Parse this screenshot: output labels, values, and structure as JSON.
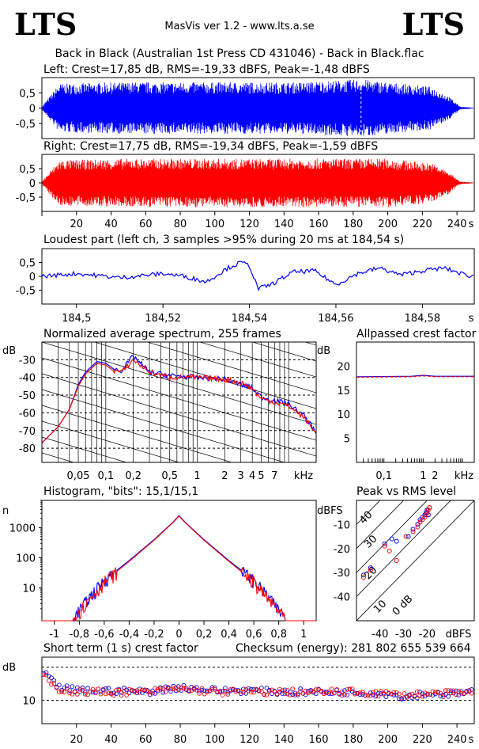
{
  "header": {
    "logo_left": "LTS",
    "logo_right": "LTS",
    "app": "MasVis ver 1.2 - www.lts.a.se",
    "track": "Back in Black (Australian 1st Press CD 431046) - Back in Black.flac"
  },
  "colors": {
    "left": "#0000ff",
    "right": "#ff0000",
    "frame": "#000000"
  },
  "chart_data": [
    {
      "id": "left",
      "type": "line",
      "title": "Left: Crest=17,85 dB, RMS=-19,33 dBFS, Peak=-1,48 dBFS",
      "ylim": [
        -1,
        1
      ],
      "xlim": [
        0,
        250
      ],
      "y_ticks": [
        0.5,
        0,
        -0.5
      ],
      "y_tick_labels": [
        "0,5",
        "0",
        "-0,5"
      ],
      "marker_x": 184.54,
      "envelope": {
        "x": [
          0,
          10,
          50,
          100,
          150,
          184.54,
          200,
          225,
          235,
          242,
          250
        ],
        "amp": [
          0.05,
          0.8,
          0.85,
          0.85,
          0.85,
          0.95,
          0.85,
          0.7,
          0.4,
          0.05,
          0.01
        ]
      }
    },
    {
      "id": "right",
      "type": "line",
      "title": "Right: Crest=17,75 dB, RMS=-19,34 dBFS, Peak=-1,59 dBFS",
      "ylim": [
        -1,
        1
      ],
      "xlim": [
        0,
        250
      ],
      "y_ticks": [
        0.5,
        0,
        -0.5
      ],
      "y_tick_labels": [
        "0,5",
        "0",
        "-0,5"
      ],
      "x_ticks": [
        20,
        40,
        60,
        80,
        100,
        120,
        140,
        160,
        180,
        200,
        220,
        240
      ],
      "x_tick_labels": [
        "20",
        "40",
        "60",
        "80",
        "100",
        "120",
        "140",
        "160",
        "180",
        "200",
        "220",
        "240"
      ],
      "x_unit": "s",
      "envelope": {
        "x": [
          0,
          10,
          50,
          100,
          150,
          200,
          225,
          235,
          242,
          250
        ],
        "amp": [
          0.05,
          0.8,
          0.85,
          0.85,
          0.85,
          0.85,
          0.7,
          0.4,
          0.05,
          0.01
        ]
      }
    },
    {
      "id": "loudest",
      "type": "line",
      "title": "Loudest part (left  ch, 3 samples >95% during 20 ms at 184,54 s)",
      "xlim": [
        184.492,
        184.592
      ],
      "ylim": [
        -1,
        1
      ],
      "y_ticks": [
        0.5,
        0,
        -0.5
      ],
      "y_tick_labels": [
        "0,5",
        "0",
        "-0,5"
      ],
      "x_ticks": [
        184.5,
        184.52,
        184.54,
        184.56,
        184.58
      ],
      "x_tick_labels": [
        "184,5",
        "184,52",
        "184,54",
        "184,56",
        "184,58"
      ],
      "x_unit": "s",
      "series": [
        {
          "x": [
            184.492,
            184.5,
            184.51,
            184.52,
            184.525,
            184.53,
            184.535,
            184.538,
            184.54,
            184.542,
            184.545,
            184.55,
            184.555,
            184.56,
            184.565,
            184.57,
            184.575,
            184.58,
            184.585,
            184.59,
            184.592
          ],
          "values": [
            0.0,
            0.1,
            -0.05,
            0.1,
            0.0,
            -0.2,
            0.3,
            0.5,
            0.4,
            -0.45,
            -0.3,
            0.15,
            0.2,
            -0.3,
            0.1,
            0.3,
            0.05,
            0.2,
            0.3,
            0.05,
            0.0
          ]
        }
      ]
    },
    {
      "id": "spectrum",
      "type": "line",
      "title": "Normalized average spectrum, 255 frames",
      "ylabel": "dB",
      "y_ticks": [
        -30,
        -40,
        -50,
        -60,
        -70,
        -80
      ],
      "y_tick_labels": [
        "-30",
        "-40",
        "-50",
        "-60",
        "-70",
        "-80"
      ],
      "x_scale": "log",
      "x_ticks": [
        0.05,
        0.1,
        0.2,
        0.5,
        1,
        2,
        3,
        4,
        5,
        7
      ],
      "x_tick_labels": [
        "0,05",
        "0,1",
        "0,2",
        "0,5",
        "1",
        "2",
        "3",
        "4",
        "5",
        "7"
      ],
      "x_unit": "kHz",
      "series": [
        {
          "name": "Left",
          "x": [
            0.02,
            0.03,
            0.04,
            0.05,
            0.06,
            0.08,
            0.1,
            0.12,
            0.15,
            0.2,
            0.3,
            0.5,
            1,
            2,
            3,
            4,
            5,
            7,
            10,
            15,
            20
          ],
          "values": [
            -77,
            -68,
            -58,
            -44,
            -37,
            -31,
            -32,
            -35,
            -36,
            -28,
            -37,
            -39,
            -40,
            -41,
            -44,
            -46,
            -51,
            -53,
            -55,
            -62,
            -71
          ]
        },
        {
          "name": "Right",
          "x": [
            0.02,
            0.03,
            0.04,
            0.05,
            0.06,
            0.08,
            0.1,
            0.12,
            0.15,
            0.2,
            0.3,
            0.5,
            1,
            2,
            3,
            4,
            5,
            7,
            10,
            15,
            20
          ],
          "values": [
            -77,
            -68,
            -58,
            -45,
            -38,
            -32,
            -33,
            -36,
            -37,
            -30,
            -37,
            -40,
            -40,
            -41,
            -43,
            -46,
            -52,
            -54,
            -56,
            -63,
            -72
          ]
        }
      ]
    },
    {
      "id": "allpass",
      "type": "line",
      "title": "Allpassed crest factor",
      "ylabel": "dB",
      "ylim": [
        0,
        25
      ],
      "y_ticks": [
        20,
        15,
        10,
        5
      ],
      "y_tick_labels": [
        "20",
        "15",
        "10",
        "5"
      ],
      "x_scale": "log",
      "x_ticks": [
        0.1,
        1,
        2
      ],
      "x_tick_labels": [
        "0,1",
        "1",
        "2"
      ],
      "x_unit": "kHz",
      "series": [
        {
          "name": "Left",
          "x": [
            0.02,
            0.5,
            1,
            2,
            5,
            20
          ],
          "values": [
            17.8,
            17.9,
            18.1,
            17.9,
            17.9,
            17.9
          ]
        },
        {
          "name": "Right",
          "x": [
            0.02,
            0.5,
            1,
            2,
            5,
            20
          ],
          "values": [
            17.7,
            17.8,
            18.0,
            17.8,
            17.8,
            17.8
          ]
        }
      ]
    },
    {
      "id": "histogram",
      "type": "line",
      "title": "Histogram, \"bits\": 15,1/15,1",
      "ylabel": "n",
      "y_scale": "log",
      "y_ticks": [
        1000,
        100,
        10
      ],
      "y_tick_labels": [
        "1000",
        "100",
        "10"
      ],
      "xlim": [
        -1.1,
        1.1
      ],
      "x_ticks": [
        -1,
        -0.8,
        -0.6,
        -0.4,
        -0.2,
        0,
        0.2,
        0.4,
        0.6,
        0.8,
        1
      ],
      "x_tick_labels": [
        "-1",
        "-0,8",
        "-0,6",
        "-0,4",
        "-0,2",
        "0",
        "0,2",
        "0,4",
        "0,6",
        "0,8",
        "1"
      ],
      "series": [
        {
          "name": "Left",
          "x": [
            -0.85,
            -0.7,
            -0.6,
            -0.4,
            -0.2,
            -0.05,
            0,
            0.05,
            0.2,
            0.4,
            0.6,
            0.7,
            0.85
          ],
          "values": [
            1,
            6,
            18,
            80,
            400,
            1500,
            2500,
            1500,
            400,
            80,
            18,
            6,
            1
          ]
        },
        {
          "name": "Right",
          "x": [
            -0.85,
            -0.7,
            -0.6,
            -0.4,
            -0.2,
            -0.05,
            0,
            0.05,
            0.2,
            0.4,
            0.6,
            0.7,
            0.85
          ],
          "values": [
            1,
            5,
            16,
            75,
            380,
            1450,
            2400,
            1450,
            380,
            75,
            16,
            5,
            1
          ]
        }
      ]
    },
    {
      "id": "peakrms",
      "type": "scatter",
      "title": "Peak vs RMS level",
      "ylabel": "dBFS",
      "xlim": [
        -50,
        0
      ],
      "ylim": [
        -50,
        0
      ],
      "x_ticks": [
        -40,
        -30,
        -20
      ],
      "x_tick_labels": [
        "-40",
        "-30",
        "-20"
      ],
      "x_unit": "dBFS",
      "y_ticks": [
        -10,
        -20,
        -30,
        -40
      ],
      "y_tick_labels": [
        "-10",
        "-20",
        "-30",
        "-40"
      ],
      "crest_line_labels": [
        "40",
        "30",
        "20",
        "10",
        "0 dB"
      ],
      "series": [
        {
          "name": "Left",
          "x": [
            -47,
            -44,
            -38,
            -35,
            -33,
            -28,
            -26,
            -24,
            -23,
            -22,
            -21,
            -20.5,
            -20,
            -19.5,
            -19
          ],
          "values": [
            -31,
            -28,
            -18,
            -16,
            -17,
            -15,
            -12,
            -10,
            -8,
            -7,
            -6,
            -5,
            -4,
            -6,
            -3
          ]
        },
        {
          "name": "Right",
          "x": [
            -47,
            -44,
            -38,
            -36,
            -33,
            -29,
            -26,
            -24,
            -23,
            -22,
            -21,
            -20.5,
            -20,
            -19.5,
            -19
          ],
          "values": [
            -32,
            -29,
            -19,
            -21,
            -25,
            -15,
            -13,
            -11,
            -9,
            -8,
            -7,
            -6,
            -5,
            -4,
            -3
          ]
        }
      ]
    },
    {
      "id": "shortcrest",
      "type": "scatter",
      "title": "Short term (1 s) crest factor",
      "checksum": "Checksum (energy):   281 802 655 539 664",
      "ylabel": "dB",
      "y_ticks": [
        10
      ],
      "y_tick_labels": [
        "10"
      ],
      "xlim": [
        0,
        250
      ],
      "x_ticks": [
        20,
        40,
        60,
        80,
        100,
        120,
        140,
        160,
        180,
        200,
        220,
        240
      ],
      "x_tick_labels": [
        "20",
        "40",
        "60",
        "80",
        "100",
        "120",
        "140",
        "160",
        "180",
        "200",
        "220",
        "240"
      ],
      "x_unit": "s",
      "series": [
        {
          "name": "Left",
          "x": [
            2,
            5,
            10,
            20,
            40,
            60,
            80,
            100,
            120,
            140,
            160,
            180,
            200,
            210,
            220,
            240,
            250
          ],
          "values": [
            18,
            16,
            14,
            13,
            13,
            12.5,
            14,
            13,
            13,
            12.5,
            12.5,
            12.5,
            12,
            11,
            12,
            12,
            13
          ]
        },
        {
          "name": "Right",
          "x": [
            2,
            5,
            10,
            20,
            40,
            60,
            80,
            100,
            120,
            140,
            160,
            180,
            200,
            210,
            220,
            240,
            250
          ],
          "values": [
            17,
            15,
            13.5,
            12.5,
            12.5,
            12.5,
            13.5,
            12.5,
            12.5,
            12.5,
            12.5,
            12.5,
            12,
            11.5,
            12,
            12,
            12.5
          ]
        }
      ]
    }
  ]
}
